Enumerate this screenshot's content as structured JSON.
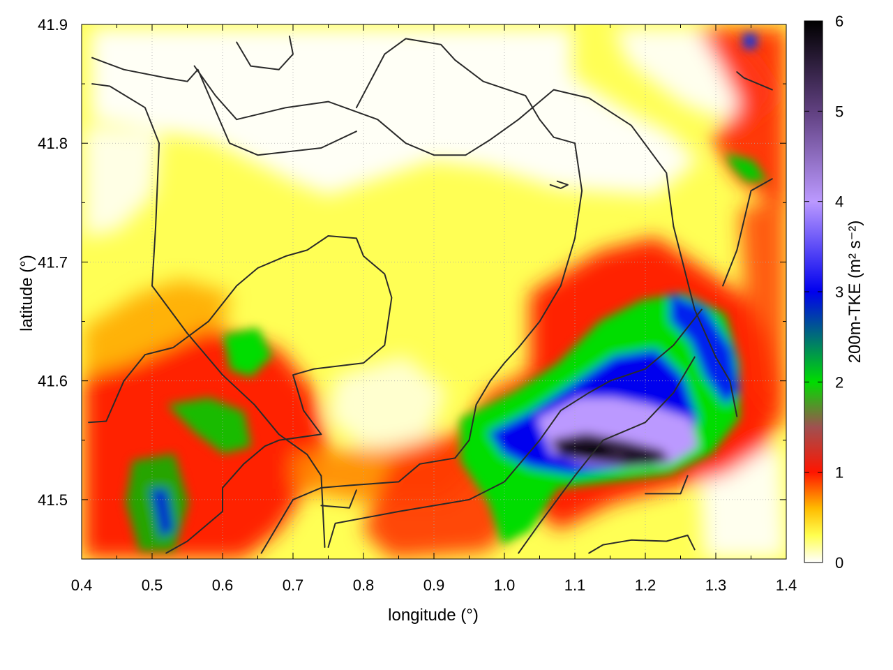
{
  "chart_data": {
    "type": "heatmap",
    "title": "",
    "xlabel": "longitude (°)",
    "ylabel": "latitude (°)",
    "colorbar_label": "200m-TKE (m² s⁻²)",
    "xlim": [
      0.4,
      1.4
    ],
    "ylim": [
      41.45,
      41.9
    ],
    "xticks": [
      "0.4",
      "0.5",
      "0.6",
      "0.7",
      "0.8",
      "0.9",
      "1.0",
      "1.1",
      "1.2",
      "1.3",
      "1.4"
    ],
    "yticks": [
      "41.5",
      "41.6",
      "41.7",
      "41.8",
      "41.9"
    ],
    "ytick_values": [
      41.5,
      41.6,
      41.7,
      41.8,
      41.9
    ],
    "colorbar_range": [
      0,
      6
    ],
    "colorbar_ticks": [
      "0",
      "1",
      "2",
      "3",
      "4",
      "5",
      "6"
    ],
    "grid": true,
    "colormap_stops": [
      {
        "value": 0.0,
        "color": "#ffffff"
      },
      {
        "value": 0.3,
        "color": "#ffff50"
      },
      {
        "value": 0.6,
        "color": "#ffbb00"
      },
      {
        "value": 1.0,
        "color": "#ff1500"
      },
      {
        "value": 1.5,
        "color": "#a05050"
      },
      {
        "value": 2.0,
        "color": "#00dd00"
      },
      {
        "value": 3.0,
        "color": "#0000ee"
      },
      {
        "value": 4.0,
        "color": "#bb99ff"
      },
      {
        "value": 5.0,
        "color": "#604080"
      },
      {
        "value": 6.0,
        "color": "#000000"
      }
    ],
    "field_features": [
      {
        "region": "north-west, interior",
        "level_approx": 0.1
      },
      {
        "region": "west/central, yellow plain",
        "level_approx": 0.4
      },
      {
        "region": "south-west band",
        "level_approx": 1.3
      },
      {
        "region": "south-east core",
        "lon": 1.1,
        "lat": 41.545,
        "level_approx": 5.8
      },
      {
        "region": "east ridge",
        "lon": 1.3,
        "lat": 41.61,
        "level_approx": 3.0
      }
    ],
    "contour_lines": [
      [
        [
          0.415,
          41.872
        ],
        [
          0.46,
          41.862
        ],
        [
          0.52,
          41.855
        ],
        [
          0.55,
          41.852
        ],
        [
          0.565,
          41.862
        ],
        [
          0.61,
          41.8
        ],
        [
          0.65,
          41.79
        ],
        [
          0.74,
          41.796
        ],
        [
          0.79,
          41.81
        ]
      ],
      [
        [
          0.415,
          41.85
        ],
        [
          0.44,
          41.848
        ],
        [
          0.49,
          41.83
        ],
        [
          0.51,
          41.8
        ],
        [
          0.505,
          41.73
        ],
        [
          0.5,
          41.68
        ]
      ],
      [
        [
          0.5,
          41.68
        ],
        [
          0.55,
          41.64
        ],
        [
          0.6,
          41.605
        ],
        [
          0.645,
          41.58
        ],
        [
          0.68,
          41.555
        ],
        [
          0.72,
          41.538
        ],
        [
          0.74,
          41.52
        ],
        [
          0.745,
          41.46
        ]
      ],
      [
        [
          0.56,
          41.865
        ],
        [
          0.59,
          41.84
        ],
        [
          0.62,
          41.82
        ],
        [
          0.69,
          41.83
        ],
        [
          0.75,
          41.835
        ],
        [
          0.82,
          41.82
        ],
        [
          0.86,
          41.8
        ],
        [
          0.9,
          41.79
        ],
        [
          0.945,
          41.79
        ],
        [
          0.98,
          41.803
        ]
      ],
      [
        [
          0.98,
          41.803
        ],
        [
          1.02,
          41.82
        ],
        [
          1.07,
          41.845
        ],
        [
          1.12,
          41.838
        ],
        [
          1.18,
          41.815
        ],
        [
          1.23,
          41.775
        ],
        [
          1.24,
          41.73
        ]
      ],
      [
        [
          0.62,
          41.885
        ],
        [
          0.64,
          41.865
        ],
        [
          0.68,
          41.862
        ],
        [
          0.7,
          41.875
        ],
        [
          0.695,
          41.89
        ]
      ],
      [
        [
          0.41,
          41.565
        ],
        [
          0.435,
          41.566
        ],
        [
          0.46,
          41.6
        ],
        [
          0.49,
          41.622
        ],
        [
          0.53,
          41.628
        ],
        [
          0.58,
          41.65
        ],
        [
          0.62,
          41.68
        ],
        [
          0.65,
          41.695
        ],
        [
          0.69,
          41.705
        ],
        [
          0.72,
          41.71
        ],
        [
          0.75,
          41.722
        ],
        [
          0.79,
          41.72
        ],
        [
          0.8,
          41.705
        ],
        [
          0.83,
          41.69
        ],
        [
          0.84,
          41.67
        ],
        [
          0.83,
          41.63
        ],
        [
          0.8,
          41.615
        ],
        [
          0.73,
          41.61
        ],
        [
          0.7,
          41.605
        ],
        [
          0.715,
          41.575
        ],
        [
          0.74,
          41.555
        ],
        [
          0.68,
          41.55
        ],
        [
          0.66,
          41.545
        ],
        [
          0.63,
          41.53
        ],
        [
          0.6,
          41.51
        ],
        [
          0.6,
          41.49
        ],
        [
          0.55,
          41.465
        ],
        [
          0.52,
          41.455
        ]
      ],
      [
        [
          0.655,
          41.455
        ],
        [
          0.7,
          41.5
        ],
        [
          0.74,
          41.51
        ],
        [
          0.78,
          41.512
        ],
        [
          0.85,
          41.515
        ],
        [
          0.88,
          41.53
        ],
        [
          0.93,
          41.535
        ],
        [
          0.95,
          41.55
        ],
        [
          0.96,
          41.58
        ],
        [
          0.98,
          41.6
        ],
        [
          1.0,
          41.615
        ],
        [
          1.02,
          41.628
        ],
        [
          1.05,
          41.65
        ],
        [
          1.08,
          41.68
        ],
        [
          1.1,
          41.72
        ],
        [
          1.11,
          41.76
        ],
        [
          1.1,
          41.8
        ],
        [
          1.07,
          41.805
        ],
        [
          1.05,
          41.82
        ],
        [
          1.03,
          41.84
        ],
        [
          0.97,
          41.852
        ],
        [
          0.93,
          41.87
        ],
        [
          0.91,
          41.883
        ],
        [
          0.86,
          41.888
        ],
        [
          0.83,
          41.875
        ],
        [
          0.79,
          41.83
        ]
      ],
      [
        [
          0.75,
          41.46
        ],
        [
          0.76,
          41.48
        ],
        [
          0.85,
          41.49
        ],
        [
          0.95,
          41.5
        ],
        [
          1.0,
          41.515
        ],
        [
          1.05,
          41.55
        ],
        [
          1.08,
          41.575
        ],
        [
          1.12,
          41.59
        ],
        [
          1.15,
          41.6
        ],
        [
          1.2,
          41.61
        ],
        [
          1.24,
          41.63
        ],
        [
          1.26,
          41.645
        ],
        [
          1.28,
          41.66
        ]
      ],
      [
        [
          1.02,
          41.455
        ],
        [
          1.05,
          41.48
        ],
        [
          1.1,
          41.52
        ],
        [
          1.14,
          41.55
        ],
        [
          1.2,
          41.565
        ],
        [
          1.24,
          41.59
        ],
        [
          1.27,
          41.62
        ]
      ],
      [
        [
          0.74,
          41.495
        ],
        [
          0.78,
          41.493
        ],
        [
          0.79,
          41.508
        ]
      ],
      [
        [
          1.12,
          41.455
        ],
        [
          1.14,
          41.462
        ],
        [
          1.18,
          41.466
        ],
        [
          1.23,
          41.465
        ],
        [
          1.26,
          41.47
        ],
        [
          1.27,
          41.458
        ]
      ],
      [
        [
          1.2,
          41.505
        ],
        [
          1.25,
          41.505
        ],
        [
          1.26,
          41.52
        ]
      ],
      [
        [
          1.24,
          41.73
        ],
        [
          1.27,
          41.66
        ],
        [
          1.3,
          41.62
        ],
        [
          1.32,
          41.6
        ],
        [
          1.33,
          41.57
        ]
      ],
      [
        [
          1.31,
          41.68
        ],
        [
          1.33,
          41.71
        ],
        [
          1.35,
          41.76
        ],
        [
          1.38,
          41.77
        ]
      ],
      [
        [
          1.33,
          41.86
        ],
        [
          1.34,
          41.855
        ],
        [
          1.38,
          41.845
        ]
      ],
      [
        [
          1.065,
          41.765
        ],
        [
          1.08,
          41.762
        ],
        [
          1.09,
          41.765
        ],
        [
          1.075,
          41.768
        ]
      ]
    ]
  }
}
